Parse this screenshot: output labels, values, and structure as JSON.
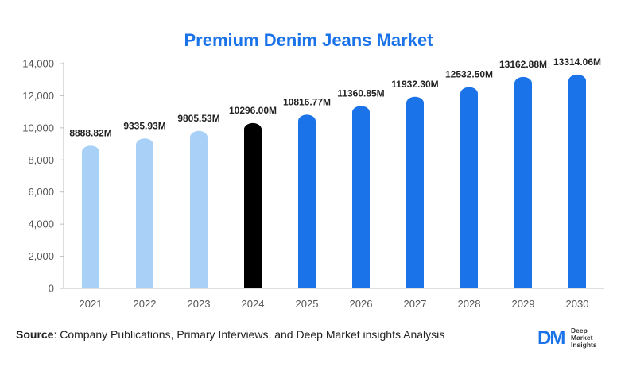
{
  "chart_data": {
    "type": "bar",
    "title": "Premium Denim Jeans Market",
    "categories": [
      "2021",
      "2022",
      "2023",
      "2024",
      "2025",
      "2026",
      "2027",
      "2028",
      "2029",
      "2030"
    ],
    "values": [
      8888.82,
      9335.93,
      9805.53,
      10296.0,
      10816.77,
      11360.85,
      11932.3,
      12532.5,
      13162.88,
      13314.06
    ],
    "data_labels": [
      "8888.82M",
      "9335.93M",
      "9805.53M",
      "10296.00M",
      "10816.77M",
      "11360.85M",
      "11932.30M",
      "12532.50M",
      "13162.88M",
      "13314.06M"
    ],
    "ylim": [
      0,
      14000
    ],
    "yticks": [
      0,
      2000,
      4000,
      6000,
      8000,
      10000,
      12000,
      14000
    ],
    "ytick_labels": [
      "0",
      "2,000",
      "4,000",
      "6,000",
      "8,000",
      "10,000",
      "12,000",
      "14,000"
    ],
    "bar_colors": [
      "#a9d1f7",
      "#a9d1f7",
      "#a9d1f7",
      "#000000",
      "#1a73e8",
      "#1a73e8",
      "#1a73e8",
      "#1a73e8",
      "#1a73e8",
      "#1a73e8"
    ],
    "grid": false,
    "xlabel": "",
    "ylabel": ""
  },
  "footer": {
    "source_label": "Source",
    "source_text": ": Company Publications, Primary Interviews, and Deep Market insights Analysis"
  },
  "logo": {
    "mark": "DM",
    "line1": "Deep",
    "line2": "Market",
    "line3": "Insights"
  },
  "colors": {
    "title": "#1a73e8",
    "axis": "#bdbdbd",
    "tick_text": "#555555",
    "label_text": "#222222"
  }
}
